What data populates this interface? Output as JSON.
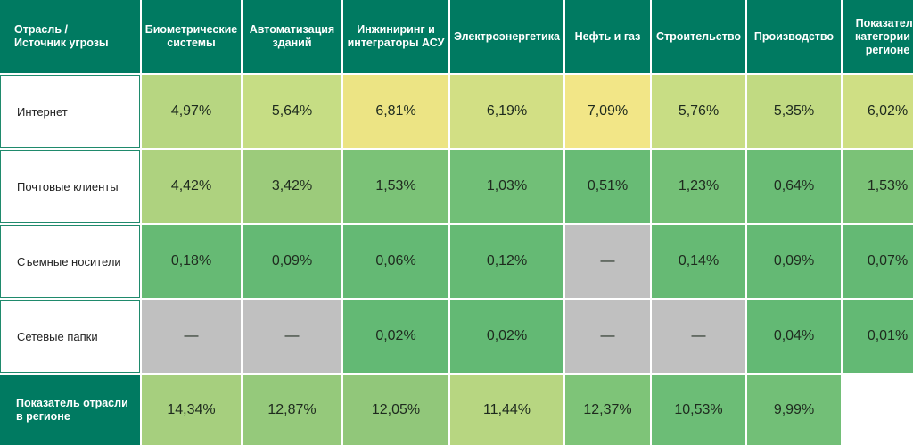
{
  "header": {
    "corner": "Отрасль /\nИсточник угрозы",
    "columns": [
      "Биометрические системы",
      "Автоматизация зданий",
      "Инжиниринг и интеграторы АСУ",
      "Электроэнергетика",
      "Нефть и газ",
      "Строительство",
      "Производство",
      "Показатель категории в регионе"
    ]
  },
  "rows": [
    {
      "label": "Интернет",
      "cells": [
        {
          "text": "4,97%",
          "color": "#b7d681"
        },
        {
          "text": "5,64%",
          "color": "#c6dd84"
        },
        {
          "text": "6,81%",
          "color": "#ece484"
        },
        {
          "text": "6,19%",
          "color": "#d2df84"
        },
        {
          "text": "7,09%",
          "color": "#f2e687"
        },
        {
          "text": "5,76%",
          "color": "#c8dd84"
        },
        {
          "text": "5,35%",
          "color": "#c1da82"
        },
        {
          "text": "6,02%",
          "color": "#cfdf84"
        }
      ]
    },
    {
      "label": "Почтовые клиенты",
      "cells": [
        {
          "text": "4,42%",
          "color": "#aed27f"
        },
        {
          "text": "3,42%",
          "color": "#9ccb7b"
        },
        {
          "text": "1,53%",
          "color": "#7bc277"
        },
        {
          "text": "1,03%",
          "color": "#71bf77"
        },
        {
          "text": "0,51%",
          "color": "#68bb75"
        },
        {
          "text": "1,23%",
          "color": "#74c077"
        },
        {
          "text": "0,64%",
          "color": "#6abc75"
        },
        {
          "text": "1,53%",
          "color": "#7bc277"
        }
      ]
    },
    {
      "label": "Съемные носители",
      "cells": [
        {
          "text": "0,18%",
          "color": "#66ba74"
        },
        {
          "text": "0,09%",
          "color": "#64b974"
        },
        {
          "text": "0,06%",
          "color": "#64b974"
        },
        {
          "text": "0,12%",
          "color": "#65ba74"
        },
        {
          "text": "—",
          "color": "#c0c0c0"
        },
        {
          "text": "0,14%",
          "color": "#66ba74"
        },
        {
          "text": "0,09%",
          "color": "#64b974"
        },
        {
          "text": "0,07%",
          "color": "#64b974"
        }
      ]
    },
    {
      "label": "Сетевые папки",
      "cells": [
        {
          "text": "—",
          "color": "#c0c0c0"
        },
        {
          "text": "—",
          "color": "#c0c0c0"
        },
        {
          "text": "0,02%",
          "color": "#63b974"
        },
        {
          "text": "0,02%",
          "color": "#63b974"
        },
        {
          "text": "—",
          "color": "#c0c0c0"
        },
        {
          "text": "—",
          "color": "#c0c0c0"
        },
        {
          "text": "0,04%",
          "color": "#63b974"
        },
        {
          "text": "0,01%",
          "color": "#63b974"
        }
      ]
    }
  ],
  "footer": {
    "label": "Показатель отрасли\nв регионе",
    "cells": [
      {
        "text": "14,34%",
        "color": "#a6cf7e"
      },
      {
        "text": "12,87%",
        "color": "#95c97b"
      },
      {
        "text": "12,05%",
        "color": "#91c77a"
      },
      {
        "text": "11,44%",
        "color": "#b7d681"
      },
      {
        "text": "12,37%",
        "color": "#7ec478"
      },
      {
        "text": "10,53%",
        "color": "#6cbd76"
      },
      {
        "text": "9,99%",
        "color": "#72bf77"
      }
    ]
  }
}
